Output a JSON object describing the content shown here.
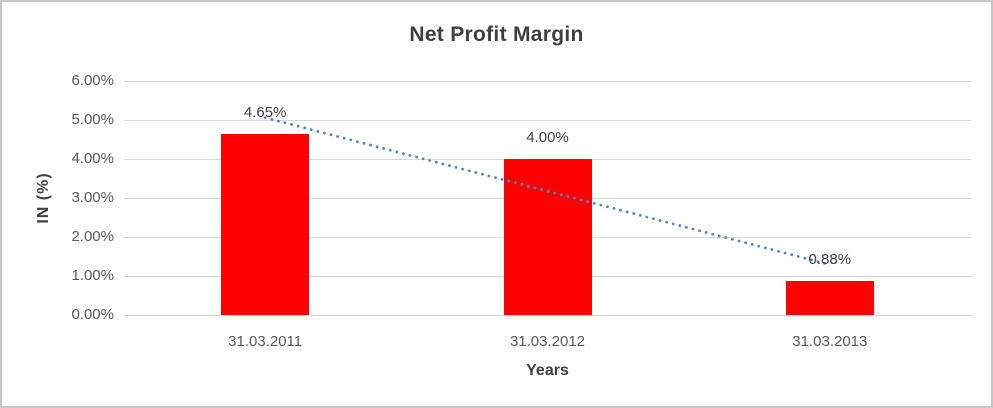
{
  "chart_data": {
    "type": "bar",
    "title": "Net Profit Margin",
    "xlabel": "Years",
    "ylabel": "IN (%)",
    "categories": [
      "31.03.2011",
      "31.03.2012",
      "31.03.2013"
    ],
    "values": [
      4.65,
      4.0,
      0.88
    ],
    "data_labels": [
      "4.65%",
      "4.00%",
      "0.88%"
    ],
    "y_ticks": [
      "6.00%",
      "5.00%",
      "4.00%",
      "3.00%",
      "2.00%",
      "1.00%",
      "0.00%"
    ],
    "ylim": [
      0,
      6
    ],
    "y_tick_step": 1,
    "grid": true,
    "legend": "none",
    "bar_color": "#ff0000",
    "trendline": {
      "type": "linear",
      "style": "dotted",
      "color": "#4e86c8",
      "fitted_values": [
        5.06,
        3.18,
        1.29
      ]
    }
  },
  "colors": {
    "background": "#ffffff",
    "border": "#c6c6c6",
    "gridline": "#d9d9d9",
    "title_text": "#3f3f3f",
    "tick_text": "#595959",
    "label_text": "#404040",
    "bar_color": "#ff0000",
    "trend_color": "#4e86c8"
  }
}
